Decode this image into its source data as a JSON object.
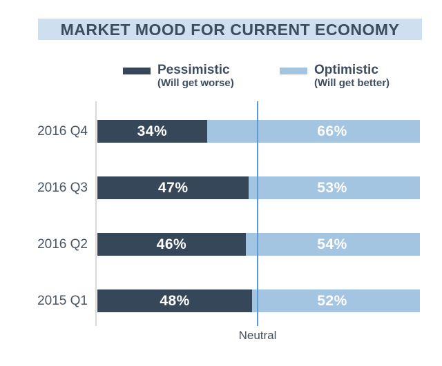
{
  "title": "MARKET MOOD FOR CURRENT ECONOMY",
  "legend": {
    "pessimistic": {
      "label": "Pessimistic",
      "sublabel": "(Will get worse)"
    },
    "optimistic": {
      "label": "Optimistic",
      "sublabel": "(Will get better)"
    }
  },
  "colors": {
    "pessimistic": "#37475A",
    "optimistic": "#A4C5E2",
    "title_background": "#CEDFEF",
    "title_text": "#3D4C5E",
    "neutral_line": "#5B9BD5",
    "axis_line": "#D9D9D9",
    "category_label": "#47535F",
    "value_label": "#FFFFFF"
  },
  "chart_data": {
    "type": "bar",
    "orientation": "horizontal",
    "stacked": true,
    "title": "MARKET MOOD FOR CURRENT ECONOMY",
    "categories": [
      "2016 Q4",
      "2016 Q3",
      "2016 Q2",
      "2015 Q1"
    ],
    "series": [
      {
        "name": "Pessimistic (Will get worse)",
        "color": "#37475A",
        "values": [
          34,
          47,
          46,
          48
        ]
      },
      {
        "name": "Optimistic (Will get better)",
        "color": "#A4C5E2",
        "values": [
          66,
          53,
          54,
          52
        ]
      }
    ],
    "value_format": "percent",
    "xlim": [
      0,
      100
    ],
    "grid": false,
    "legend_position": "top",
    "annotations": [
      {
        "label": "Neutral",
        "x": 50
      }
    ]
  }
}
